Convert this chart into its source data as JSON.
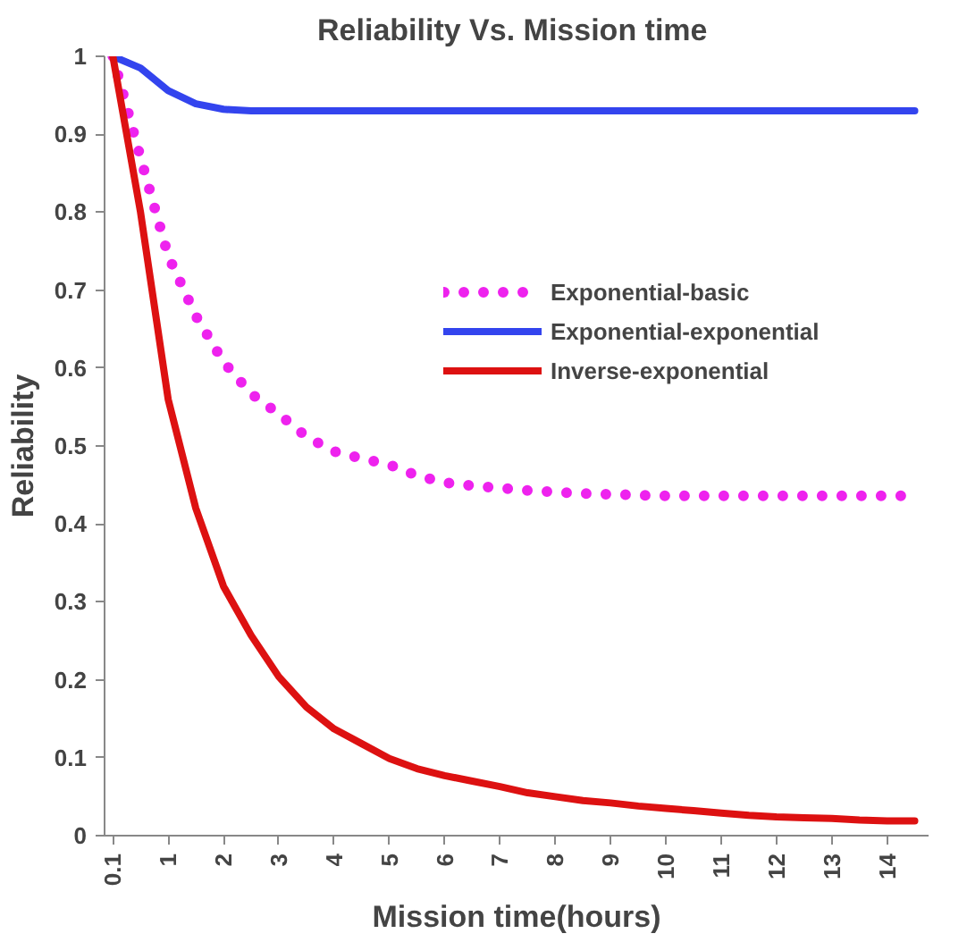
{
  "chart_data": {
    "type": "line",
    "title": "Reliability  Vs. Mission time",
    "xlabel": "Mission time(hours)",
    "ylabel": "Reliability",
    "categories": [
      "0.1",
      null,
      "1",
      null,
      "2",
      null,
      "3",
      null,
      "4",
      null,
      "5",
      null,
      "6",
      null,
      "7",
      null,
      "8",
      null,
      "9",
      null,
      "10",
      null,
      "11",
      null,
      "12",
      null,
      "13",
      null,
      "14",
      null
    ],
    "series": [
      {
        "name": "Exponential-basic",
        "color": "#ee22ee",
        "line_style": "dotted",
        "values": [
          1.0,
          0.87,
          0.744,
          0.667,
          0.608,
          0.567,
          0.541,
          0.512,
          0.493,
          0.484,
          0.476,
          0.462,
          0.453,
          0.449,
          0.446,
          0.443,
          0.441,
          0.439,
          0.438,
          0.437,
          0.436,
          0.436,
          0.436,
          0.436,
          0.436,
          0.436,
          0.436,
          0.436,
          0.436,
          0.436
        ]
      },
      {
        "name": "Exponential-exponential",
        "color": "#3344ee",
        "line_style": "solid",
        "values": [
          1.0,
          0.985,
          0.956,
          0.939,
          0.932,
          0.93,
          0.93,
          0.93,
          0.93,
          0.93,
          0.93,
          0.93,
          0.93,
          0.93,
          0.93,
          0.93,
          0.93,
          0.93,
          0.93,
          0.93,
          0.93,
          0.93,
          0.93,
          0.93,
          0.93,
          0.93,
          0.93,
          0.93,
          0.93,
          0.93
        ]
      },
      {
        "name": "Inverse-exponential",
        "color": "#dd1111",
        "line_style": "solid",
        "values": [
          1.0,
          0.8,
          0.56,
          0.42,
          0.32,
          0.257,
          0.204,
          0.165,
          0.137,
          0.118,
          0.099,
          0.086,
          0.077,
          0.07,
          0.063,
          0.055,
          0.05,
          0.045,
          0.042,
          0.038,
          0.035,
          0.032,
          0.029,
          0.026,
          0.024,
          0.023,
          0.022,
          0.02,
          0.019,
          0.019
        ]
      }
    ],
    "ylim": [
      0,
      1
    ],
    "yticks": [
      0,
      0.1,
      0.2,
      0.3,
      0.4,
      0.5,
      0.6,
      0.7,
      0.8,
      0.9,
      1
    ],
    "legend": "right",
    "grid": false
  }
}
